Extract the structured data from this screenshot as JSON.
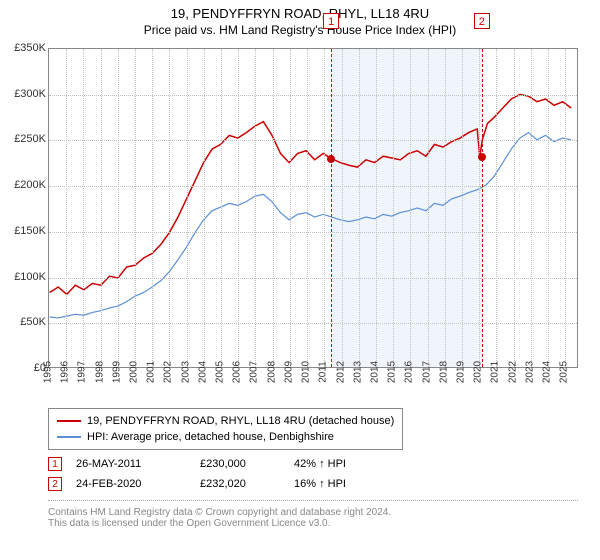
{
  "title": "19, PENDYFFRYN ROAD, RHYL, LL18 4RU",
  "subtitle": "Price paid vs. HM Land Registry's House Price Index (HPI)",
  "chart": {
    "type": "line",
    "x_range": [
      1995,
      2025.8
    ],
    "y_range": [
      0,
      350000
    ],
    "y_ticks": [
      0,
      50000,
      100000,
      150000,
      200000,
      250000,
      300000,
      350000
    ],
    "y_tick_labels": [
      "£0",
      "£50K",
      "£100K",
      "£150K",
      "£200K",
      "£250K",
      "£300K",
      "£350K"
    ],
    "x_ticks": [
      1995,
      1996,
      1997,
      1998,
      1999,
      2000,
      2001,
      2002,
      2003,
      2004,
      2005,
      2006,
      2007,
      2008,
      2009,
      2010,
      2011,
      2012,
      2013,
      2014,
      2015,
      2016,
      2017,
      2018,
      2019,
      2020,
      2021,
      2022,
      2023,
      2024,
      2025
    ],
    "background_color": "#ffffff",
    "grid_color": "#c0c0c0",
    "axis_color": "#888888",
    "shade_band": {
      "x_start": 2011.4,
      "x_end": 2020.15,
      "color": "#f0f5fb"
    },
    "series": [
      {
        "name": "19, PENDYFFRYN ROAD, RHYL, LL18 4RU (detached house)",
        "color": "#cc0000",
        "line_width": 1.5,
        "data": [
          [
            1995,
            82000
          ],
          [
            1995.5,
            88000
          ],
          [
            1996,
            80000
          ],
          [
            1996.5,
            90000
          ],
          [
            1997,
            85000
          ],
          [
            1997.5,
            92000
          ],
          [
            1998,
            90000
          ],
          [
            1998.5,
            100000
          ],
          [
            1999,
            98000
          ],
          [
            1999.5,
            110000
          ],
          [
            2000,
            112000
          ],
          [
            2000.5,
            120000
          ],
          [
            2001,
            125000
          ],
          [
            2001.5,
            135000
          ],
          [
            2002,
            148000
          ],
          [
            2002.5,
            165000
          ],
          [
            2003,
            185000
          ],
          [
            2003.5,
            205000
          ],
          [
            2004,
            225000
          ],
          [
            2004.5,
            240000
          ],
          [
            2005,
            245000
          ],
          [
            2005.5,
            255000
          ],
          [
            2006,
            252000
          ],
          [
            2006.5,
            258000
          ],
          [
            2007,
            265000
          ],
          [
            2007.5,
            270000
          ],
          [
            2008,
            255000
          ],
          [
            2008.5,
            235000
          ],
          [
            2009,
            225000
          ],
          [
            2009.5,
            235000
          ],
          [
            2010,
            238000
          ],
          [
            2010.5,
            228000
          ],
          [
            2011,
            235000
          ],
          [
            2011.4,
            230000
          ],
          [
            2012,
            225000
          ],
          [
            2012.5,
            222000
          ],
          [
            2013,
            220000
          ],
          [
            2013.5,
            228000
          ],
          [
            2014,
            225000
          ],
          [
            2014.5,
            232000
          ],
          [
            2015,
            230000
          ],
          [
            2015.5,
            228000
          ],
          [
            2016,
            235000
          ],
          [
            2016.5,
            238000
          ],
          [
            2017,
            232000
          ],
          [
            2017.5,
            245000
          ],
          [
            2018,
            242000
          ],
          [
            2018.5,
            248000
          ],
          [
            2019,
            252000
          ],
          [
            2019.5,
            258000
          ],
          [
            2020,
            262000
          ],
          [
            2020.15,
            232000
          ],
          [
            2020.3,
            250000
          ],
          [
            2020.6,
            268000
          ],
          [
            2021,
            275000
          ],
          [
            2021.5,
            285000
          ],
          [
            2022,
            295000
          ],
          [
            2022.5,
            300000
          ],
          [
            2023,
            298000
          ],
          [
            2023.5,
            292000
          ],
          [
            2024,
            295000
          ],
          [
            2024.5,
            288000
          ],
          [
            2025,
            292000
          ],
          [
            2025.5,
            285000
          ]
        ]
      },
      {
        "name": "HPI: Average price, detached house, Denbighshire",
        "color": "#5b8fd6",
        "line_width": 1.2,
        "data": [
          [
            1995,
            55000
          ],
          [
            1995.5,
            54000
          ],
          [
            1996,
            56000
          ],
          [
            1996.5,
            58000
          ],
          [
            1997,
            57000
          ],
          [
            1997.5,
            60000
          ],
          [
            1998,
            62000
          ],
          [
            1998.5,
            65000
          ],
          [
            1999,
            67000
          ],
          [
            1999.5,
            72000
          ],
          [
            2000,
            78000
          ],
          [
            2000.5,
            82000
          ],
          [
            2001,
            88000
          ],
          [
            2001.5,
            95000
          ],
          [
            2002,
            105000
          ],
          [
            2002.5,
            118000
          ],
          [
            2003,
            132000
          ],
          [
            2003.5,
            148000
          ],
          [
            2004,
            162000
          ],
          [
            2004.5,
            172000
          ],
          [
            2005,
            176000
          ],
          [
            2005.5,
            180000
          ],
          [
            2006,
            178000
          ],
          [
            2006.5,
            182000
          ],
          [
            2007,
            188000
          ],
          [
            2007.5,
            190000
          ],
          [
            2008,
            182000
          ],
          [
            2008.5,
            170000
          ],
          [
            2009,
            162000
          ],
          [
            2009.5,
            168000
          ],
          [
            2010,
            170000
          ],
          [
            2010.5,
            165000
          ],
          [
            2011,
            168000
          ],
          [
            2011.5,
            165000
          ],
          [
            2012,
            162000
          ],
          [
            2012.5,
            160000
          ],
          [
            2013,
            162000
          ],
          [
            2013.5,
            165000
          ],
          [
            2014,
            163000
          ],
          [
            2014.5,
            168000
          ],
          [
            2015,
            166000
          ],
          [
            2015.5,
            170000
          ],
          [
            2016,
            172000
          ],
          [
            2016.5,
            175000
          ],
          [
            2017,
            172000
          ],
          [
            2017.5,
            180000
          ],
          [
            2018,
            178000
          ],
          [
            2018.5,
            185000
          ],
          [
            2019,
            188000
          ],
          [
            2019.5,
            192000
          ],
          [
            2020,
            195000
          ],
          [
            2020.5,
            200000
          ],
          [
            2021,
            210000
          ],
          [
            2021.5,
            225000
          ],
          [
            2022,
            240000
          ],
          [
            2022.5,
            252000
          ],
          [
            2023,
            258000
          ],
          [
            2023.5,
            250000
          ],
          [
            2024,
            255000
          ],
          [
            2024.5,
            248000
          ],
          [
            2025,
            252000
          ],
          [
            2025.5,
            250000
          ]
        ]
      }
    ],
    "sale_markers": [
      {
        "num": "1",
        "x": 2011.4,
        "y": 230000
      },
      {
        "num": "2",
        "x": 2020.15,
        "y": 232000
      }
    ]
  },
  "legend": {
    "items": [
      {
        "color": "#cc0000",
        "label": "19, PENDYFFRYN ROAD, RHYL, LL18 4RU (detached house)"
      },
      {
        "color": "#5b8fd6",
        "label": "HPI: Average price, detached house, Denbighshire"
      }
    ]
  },
  "sales": [
    {
      "num": "1",
      "date": "26-MAY-2011",
      "price": "£230,000",
      "pct": "42% ↑ HPI"
    },
    {
      "num": "2",
      "date": "24-FEB-2020",
      "price": "£232,020",
      "pct": "16% ↑ HPI"
    }
  ],
  "footnote": {
    "line1": "Contains HM Land Registry data © Crown copyright and database right 2024.",
    "line2": "This data is licensed under the Open Government Licence v3.0."
  }
}
